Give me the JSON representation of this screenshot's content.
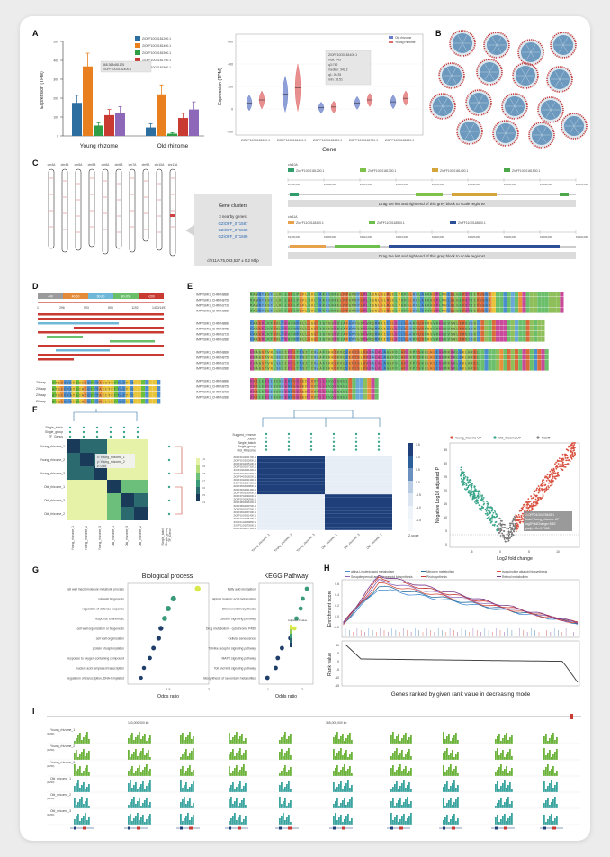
{
  "panels": {
    "A": "A",
    "B": "B",
    "C": "C",
    "D": "D",
    "E": "E",
    "F": "F",
    "G": "G",
    "H": "H",
    "I": "I"
  },
  "colors": {
    "blue": "#2c6e9f",
    "orange": "#e8801f",
    "green": "#2f9e45",
    "red": "#c93a32",
    "purple": "#8e68b8",
    "violin_old": "#6a7fc9",
    "violin_young": "#e06b6b",
    "teal": "#3aa58a",
    "dark_blue": "#1f3f7a",
    "lime": "#6bbf3a"
  },
  "panelA": {
    "bar_chart": {
      "type": "bar",
      "categories": [
        "Young rhizome",
        "Old rhizome"
      ],
      "series": [
        {
          "name": "ZiOFF10G0181200.1",
          "values": [
            175,
            45
          ]
        },
        {
          "name": "ZiOFF10G0181400.1",
          "values": [
            368,
            220
          ]
        },
        {
          "name": "ZiOFF10G0181500.1",
          "values": [
            55,
            12
          ]
        },
        {
          "name": "ZiOFF10G0181700.1",
          "values": [
            110,
            95
          ]
        },
        {
          "name": "ZiOFF10G0181800.1",
          "values": [
            120,
            140
          ]
        }
      ],
      "errors": [
        [
          40,
          20
        ],
        [
          70,
          50
        ],
        [
          15,
          5
        ],
        [
          30,
          25
        ],
        [
          35,
          40
        ]
      ],
      "ylabel": "Expression (TPM)",
      "yticks": [
        "0",
        "100",
        "200",
        "300",
        "400",
        "500"
      ],
      "ylim": [
        0,
        500
      ],
      "tooltip_line1": "368.368x88.176",
      "tooltip_line2": "ZiOFF10G0181400.1"
    },
    "violin": {
      "type": "violin",
      "ylabel": "Expression (TPM)",
      "xlabel": "Gene",
      "yticks": [
        "-200",
        "0",
        "200",
        "400",
        "600"
      ],
      "legend": [
        "Old rhizome",
        "Young rhizome"
      ],
      "genes": [
        "ZiOFF10G0181200.1",
        "ZiOFF10G0181400.1",
        "ZiOFF10G0181500.1",
        "ZiOFF10G0181700.1",
        "ZiOFF10G0181800.1"
      ],
      "tooltip": [
        "ZiOFF10G0181400.1",
        "max: 743",
        "q3:742",
        "median: 343.2",
        "q1: 20.25",
        "min: 18.51"
      ]
    }
  },
  "panelC": {
    "chromosomes": [
      "chr4A",
      "chr4B",
      "chr5A",
      "chr5B",
      "chr6A",
      "chr6B",
      "chr7A",
      "chr9A",
      "chr10A",
      "chr11A"
    ],
    "gene_clusters_title": "Gene clusters",
    "nearby_label": "3 nearby genes:",
    "nearby_genes": [
      "GZiOFF_071587",
      "GZiOFF_071588",
      "GZiOFF_071589"
    ],
    "position": "chr11A:75,003,527 ± 0.2 Mbp",
    "tracks": [
      {
        "chr": "chr10A",
        "genes": [
          "ZioFF10G0181200.1",
          "ZioFF10G0181300.1",
          "ZioFF10G0181400.1",
          "ZioFF10G0181500.1"
        ],
        "drag": "Drag the left and right end of this grey block to scale regions!"
      },
      {
        "chr": "chr11A",
        "genes": [
          "ZioFF11G0118400.1",
          "ZioFF11G0118500.1",
          "ZioFF11G0118600.1"
        ],
        "drag": "Drag the left and right end of this grey block to scale regions!"
      }
    ],
    "ruler_labels": [
      "63,000,000",
      "63,005,000",
      "63,010,000",
      "63,015,000",
      "63,020,000",
      "63,025,000",
      "63,030,000",
      "63,035,000",
      "63,040,000"
    ]
  },
  "panelD": {
    "legend": [
      "<40",
      "40-60",
      "60-80",
      "80-200",
      ">200"
    ],
    "ruler": [
      "1",
      "296",
      "593",
      "894",
      "1192",
      "1400/1491"
    ],
    "seq_labels": [
      "ZiHaap",
      "ZiHaap",
      "ZiHaap",
      "ZiHaap"
    ],
    "sequences": [
      "ATGCCTATGCACGTTTACCTCTTACTTC",
      "ATGCCTATGCACGTTTACCTCTTACTTC",
      "ATGCCTATGCACGTTTACCTCTTACTTC",
      "ATGCCTATGCACGTTTACCTCTTACTTC"
    ]
  },
  "panelE": {
    "blocks": [
      {
        "names": [
          "IMPTSMI1_CHR6N8880",
          "IMPTSMI1_CHR6N8758",
          "IMPTSMI1_CHR6N2728",
          "IMPTSMI1_CHR6N2889"
        ],
        "seqs": [
          "MAWNTNSTLLKLLGPLPLFLNVLTKKASNRELPPGPRPLPLIGNLHLMGELPHRSLRDLAKKHGPLMHLQLGEVSTIIVSSAD",
          "MAWNTNSTLLKLLGPLPLFLNVLTKKASNRELPPGPRPLPLIGNLHLMGELPHRSLRDLAKKHGPLMHLQLGEVSTIIVSSAD",
          "MAWNTNSTLLKLLGPLPLFLNVLTKKASNRELPPGPRPLPLIGNLHLMGELPHRSLRDLAKKHGPLMHLQLGEVSTIIVSSAD",
          "MAWNTNSTLLKLLGPLPLFLNVLTKKASNRELPPGPRPLPLIGNLHLMGELPHRSLRDLAKKHGPLMHLQLGEVSTIIVSSAD"
        ]
      },
      {
        "names": [
          "IMPTSMI1_CHR6N8880",
          "IMPTSMI1_CHR6N8758",
          "IMPTSMI1_CHR6N2728",
          "IMPTSMI1_CHR6N2889"
        ],
        "seqs": [
          "FAKEVLKTHDLVFASRPKLLASEIIGYNSTDIAFSPYGDYWRQMRKICVLELLSAKRVQSFRSVREEEVSNLIRSISS",
          "FAKEVLKTHDLVFASRPKLLASEIIGYNSTDIAFSPYGDYWRQMRKICVLELLSAKRVQSFRSVREEEVSNLIRSISS",
          "FAKEVLKTHDLVFASRPKLLASEIIGYNSTDIAFSPYGDYWRQMRKICVLELLSAKRVQSFRSVREEEVSNLIRSISS",
          "FAKEVLKTHDLVFASRPKLLASEIIGYNSTDIAFSPYGDYWRQMRKICVLELLSAKRVQSFRSVREEEVSNLIRSISS"
        ]
      },
      {
        "names": [
          "IMPTSMI1_CHR6N8880",
          "IMPTSMI1_CHR6N8758",
          "IMPTSMI1_CHR6N2728",
          "IMPTSMI1_CHR6N2889"
        ],
        "seqs": [
          "ESAGSPVNLSEKIFSLTNSITCRAAFGKKCKDQEEFISLVKEALKLAGGFDLADLFPSSKLLHLISGMRSKLEKLHREL",
          "ESAGSPVNLSEKIFSLTNSITCRAAFGKKCKDQEEFISLVKEALKLAGGFDLADLFPSSKLLHLISGMRSKLEKLHREL",
          "ESAGSPVNLSEKIFSLTNSITCRAAFGKKCKDQEEFISLVKEALKLAGGFDLADLFPSSKLLHLISGMRSKLEKLHREL",
          "ESAGSPVNLSEKIFSLTNSITCRAAFGKKCKDQEEFISLVKEALKLAGGFDLADLFPSSKLLHLISGMRSKLEKLHREL"
        ]
      },
      {
        "names": [
          "IMPTSMI1_CHR6N8880",
          "IMPTSMI1_CHR6N8758",
          "IMPTSMI1_CHR6N2728",
          "IMPTSMI1_CHR6N2889"
        ],
        "seqs": [
          "DKILENIINEHKERPEGAEDLVDVLLKVQQSGEL",
          "DKILENIINEHKERPEGAEDLVDVLLKVQQSGEL",
          "DKILENIINEHKERPEGAEDLVDVLLKVQQSGEL",
          "DKILENIINEHKERPEGAEDLVDVLLKVQQSGEL"
        ]
      }
    ]
  },
  "panelF": {
    "corr_rows": [
      "Young_rhizome_1",
      "Young_rhizome_2",
      "Young_rhizome_3",
      "Old_rhizome_1",
      "Old_rhizome_3",
      "Old_rhizome_2"
    ],
    "corr_top_labels": [
      "Single_batch",
      "Single_group",
      "TF_Genus"
    ],
    "corr_tooltip": [
      "x: Young_rhizome_1",
      "y: Young_rhizome_2",
      "z: 0.95"
    ],
    "corr_scale": [
      "1.0",
      "0.9",
      "0.8",
      "0.7",
      "0.6",
      "0.5",
      "0.4"
    ],
    "side_labels": [
      "Single_batch",
      "Single_group",
      "TF_Genus"
    ],
    "heat_top_labels": [
      "Suggest_remove",
      "Outlier",
      "Single_batch",
      "Single_group",
      "Old_Rhizome"
    ],
    "heat_cols": [
      "Young_rhizome_1",
      "Young_rhizome_2",
      "Young_rhizome_3",
      "Old_rhizome_1",
      "Old_rhizome_3",
      "Old_rhizome_2"
    ],
    "heat_genes": [
      "ZiOFF01G0001700.1",
      "ZiOFF01G0002800.1",
      "ZiOFF02G0005100.1",
      "ZiOFF02G0007300.1",
      "ZiOFF03G0011200.1",
      "ZiOFF03G0014700.1",
      "ZiOFF04G0018200.1",
      "ZiOFF04G0021300.1",
      "ZiOFF05G0024100.1",
      "ZiOFF05G0029800.1",
      "ZiOFF06G0031400.1",
      "ZiOFF06G0035900.1",
      "ZiOFF07G0039200.1",
      "ZiOFF07G0042800.1",
      "ZiOFF08G0046100.1",
      "ZiOFF08G0049700.1",
      "ZiOFF09G0053300.1",
      "ZiOFF09G0057200.1",
      "ZiOFF10G0061400.1",
      "ZiOFF10G0065100.1",
      "ZiOFF11G0069800.1",
      "ZiOFF11G0073500.1",
      "ZiOFF12G0077100.1"
    ],
    "heat_scale": [
      "1.5",
      "1.0",
      "0.5",
      "0.0",
      "-0.5",
      "-1.0",
      "-1.5"
    ],
    "heat_scale_title": "Z-score",
    "volcano": {
      "type": "scatter",
      "legend": [
        "Young_rhizome UP",
        "Old_rhizome UP",
        "NoDiff"
      ],
      "xlabel": "Log2 fold change",
      "ylabel": "Negative Log10 adjusted P",
      "xticks": [
        "-5",
        "0",
        "5",
        "10"
      ],
      "yticks": [
        "0",
        "5",
        "10",
        "15",
        "20",
        "25",
        "30",
        "35"
      ],
      "tooltip": [
        "ZiOFF01G0478463.1",
        "lead=Young_rhizome UP",
        "log2FoldChange=5.52",
        "padj=1.2e-3.7068"
      ]
    }
  },
  "panelG": {
    "bp": {
      "type": "scatter",
      "title": "Biological process",
      "xlabel": "Odds ratio",
      "xticks": [
        "1.5",
        "2"
      ],
      "terms": [
        "cell wall macromolecule metabolic process",
        "cell wall biogenesis",
        "regulation of defense response",
        "response to antibiotic",
        "cell wall organization or biogenesis",
        "cell wall organization",
        "protein phosphorylation",
        "response to oxygen-containing compound",
        "nucleic acid-templated transcription",
        "regulation of transcription, DNA-templated"
      ],
      "odds": [
        1.95,
        1.62,
        1.55,
        1.5,
        1.45,
        1.42,
        1.35,
        1.3,
        1.22,
        1.18
      ]
    },
    "kegg": {
      "type": "scatter",
      "title": "KEGG Pathway",
      "xlabel": "Odds ratio",
      "xticks": [
        "1",
        "2"
      ],
      "terms": [
        "Fatty acid elongation",
        "alpha-Linolenic acid metabolism",
        "Diterpenoid biosynthesis",
        "Calcium signaling pathway",
        "Drug metabolism - cytochrome P450",
        "Cellular senescence",
        "Toll-like receptor signaling pathway",
        "MAPK signaling pathway",
        "Toll and Imd signaling pathway",
        "Biosynthesis of secondary metabolites"
      ],
      "odds": [
        2.55,
        2.45,
        2.4,
        2.3,
        2.25,
        2.15,
        1.95,
        1.85,
        1.8,
        1.6
      ],
      "legend_title": "Adjusted P-value"
    }
  },
  "panelH": {
    "type": "line",
    "legend": [
      "alpha-Linolenic acid metabolism",
      "Nitrogen metabolism",
      "Isoquinoline alkaloid biosynthesis",
      "Sesquiterpenoid and triterpenoid biosynthesis",
      "Photosynthesis",
      "Retinol metabolism"
    ],
    "ylabel_top": "Enrichment score",
    "ylabel_bottom": "Rank value",
    "xlabel": "Genes ranked by given rank value in decreasing mode",
    "yticks_top": [
      "0.6",
      "0.4",
      "0.2",
      "0.0",
      "-0.2"
    ],
    "yticks_bottom": [
      "10",
      "5",
      "0",
      "-5",
      "-10",
      "-15"
    ]
  },
  "panelI": {
    "tracks": [
      "Young_rhizome_1",
      "Young_rhizome_2",
      "Young_rhizome_3",
      "Old_rhizome_1",
      "Old_rhizome_2",
      "Old_rhizome_3"
    ],
    "coord_labels": [
      "163,000,000 kb",
      "165,000,000 kb"
    ],
    "scale_label": "(0-250)"
  }
}
